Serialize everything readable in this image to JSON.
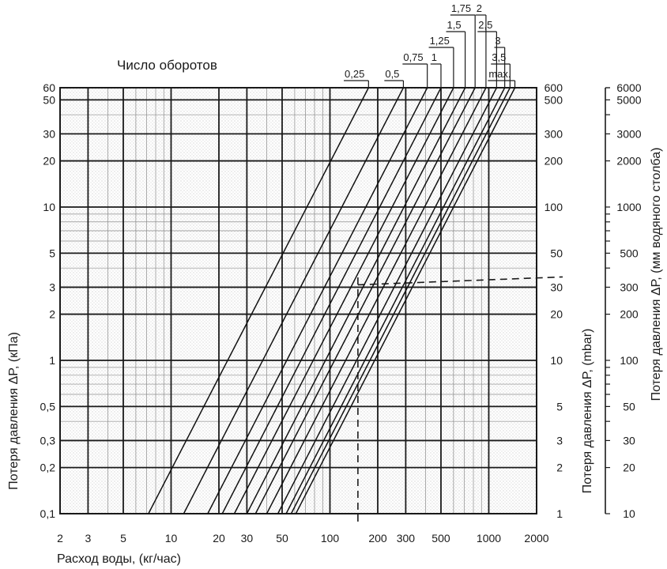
{
  "chart_data": {
    "type": "line",
    "title": "Число оборотов",
    "xlabel": "Расход воды, (кг/час)",
    "ylabel_left": "Потеря давления ΔP, (кПа)",
    "ylabel_mid": "Потеря давления ΔP, (mbar)",
    "ylabel_right": "Потеря давления ΔP, (мм водяного столба)",
    "xscale": "log",
    "yscale": "log",
    "xlim": [
      2,
      2000
    ],
    "ylim": [
      0.1,
      60
    ],
    "grid": true,
    "x_ticks": [
      2,
      3,
      5,
      10,
      20,
      30,
      50,
      100,
      200,
      300,
      500,
      1000,
      2000
    ],
    "x_tick_labels": [
      "2",
      "3",
      "5",
      "10",
      "20",
      "30",
      "50",
      "100",
      "200",
      "300",
      "500",
      "1000",
      "2000"
    ],
    "y_ticks": [
      0.1,
      0.2,
      0.3,
      0.5,
      1,
      2,
      3,
      5,
      10,
      20,
      30,
      50,
      60
    ],
    "y_tick_labels_left": [
      "0,1",
      "0,2",
      "0,3",
      "0,5",
      "1",
      "2",
      "3",
      "5",
      "10",
      "20",
      "30",
      "50",
      "60"
    ],
    "y_tick_labels_mid": [
      "1",
      "2",
      "3",
      "5",
      "10",
      "20",
      "30",
      "50",
      "100",
      "200",
      "300",
      "500",
      "600"
    ],
    "y_tick_labels_right": [
      "10",
      "20",
      "30",
      "50",
      "100",
      "200",
      "300",
      "500",
      "1000",
      "2000",
      "3000",
      "5000",
      "6000"
    ],
    "series": [
      {
        "name": "0,25",
        "x": [
          7.2,
          175
        ],
        "y": [
          0.1,
          60
        ]
      },
      {
        "name": "0,5",
        "x": [
          12,
          290
        ],
        "y": [
          0.1,
          60
        ]
      },
      {
        "name": "0,75",
        "x": [
          17,
          410
        ],
        "y": [
          0.1,
          60
        ]
      },
      {
        "name": "1",
        "x": [
          21,
          500
        ],
        "y": [
          0.1,
          60
        ]
      },
      {
        "name": "1,25",
        "x": [
          25,
          600
        ],
        "y": [
          0.1,
          60
        ]
      },
      {
        "name": "1,5",
        "x": [
          30,
          710
        ],
        "y": [
          0.1,
          60
        ]
      },
      {
        "name": "1,75",
        "x": [
          34,
          820
        ],
        "y": [
          0.1,
          60
        ]
      },
      {
        "name": "2",
        "x": [
          40,
          960
        ],
        "y": [
          0.1,
          60
        ]
      },
      {
        "name": "2,5",
        "x": [
          47,
          1120
        ],
        "y": [
          0.1,
          60
        ]
      },
      {
        "name": "3",
        "x": [
          53,
          1260
        ],
        "y": [
          0.1,
          60
        ]
      },
      {
        "name": "3,5",
        "x": [
          57,
          1360
        ],
        "y": [
          0.1,
          60
        ]
      },
      {
        "name": "max.",
        "x": [
          61,
          1460
        ],
        "y": [
          0.1,
          60
        ]
      }
    ],
    "annotations": [
      {
        "type": "dashed-line",
        "x": [
          150,
          150
        ],
        "y": [
          0.1,
          3.5
        ]
      },
      {
        "type": "dashed-line",
        "x": [
          150,
          2000
        ],
        "y": [
          3.5,
          3.5
        ]
      }
    ]
  }
}
